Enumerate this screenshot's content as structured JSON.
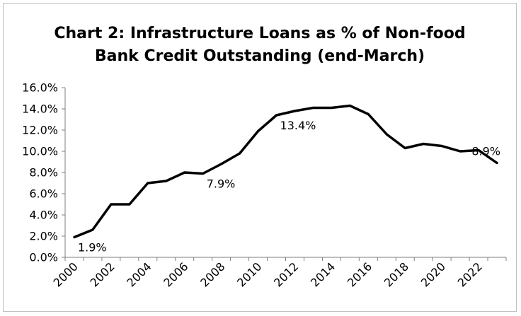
{
  "chart_data": {
    "type": "line",
    "title": "Chart 2: Infrastructure Loans as % of Non-food Bank Credit Outstanding (end-March)",
    "title_lines": [
      "Chart 2: Infrastructure Loans as % of Non-food",
      "Bank Credit Outstanding (end-March)"
    ],
    "xlabel": "",
    "ylabel": "",
    "x": [
      2000,
      2001,
      2002,
      2003,
      2004,
      2005,
      2006,
      2007,
      2008,
      2009,
      2010,
      2011,
      2012,
      2013,
      2014,
      2015,
      2016,
      2017,
      2018,
      2019,
      2020,
      2021,
      2022,
      2023
    ],
    "values": [
      1.9,
      2.6,
      5.0,
      5.0,
      7.0,
      7.2,
      8.0,
      7.9,
      8.8,
      9.8,
      11.9,
      13.4,
      13.8,
      14.1,
      14.1,
      14.3,
      13.5,
      11.6,
      10.3,
      10.7,
      10.5,
      10.0,
      10.1,
      8.9
    ],
    "ylim": [
      0,
      16
    ],
    "y_ticks": [
      "0.0%",
      "2.0%",
      "4.0%",
      "6.0%",
      "8.0%",
      "10.0%",
      "12.0%",
      "14.0%",
      "16.0%"
    ],
    "x_tick_labels": [
      "2000",
      "2002",
      "2004",
      "2006",
      "2008",
      "2010",
      "2012",
      "2014",
      "2016",
      "2018",
      "2020",
      "2022"
    ],
    "data_labels": [
      {
        "x": 2000,
        "text": "1.9%"
      },
      {
        "x": 2007,
        "text": "7.9%"
      },
      {
        "x": 2011,
        "text": "13.4%"
      },
      {
        "x": 2023,
        "text": "8.9%"
      }
    ],
    "grid": false,
    "legend": "none",
    "line_color": "#000000"
  }
}
